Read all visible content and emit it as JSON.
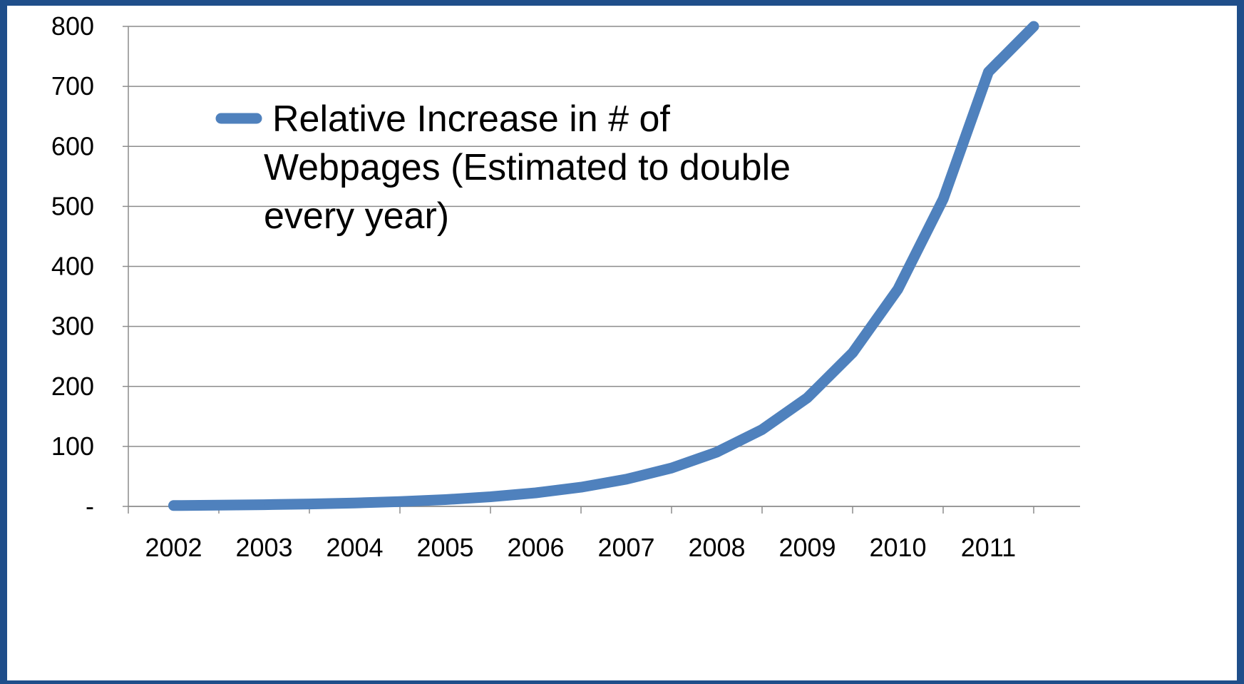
{
  "chart_data": {
    "type": "line",
    "title": "",
    "xlabel": "",
    "ylabel": "",
    "ylim": [
      0,
      800
    ],
    "yticks": [
      {
        "value": 0,
        "label": "-"
      },
      {
        "value": 100,
        "label": "100"
      },
      {
        "value": 200,
        "label": "200"
      },
      {
        "value": 300,
        "label": "300"
      },
      {
        "value": 400,
        "label": "400"
      },
      {
        "value": 500,
        "label": "500"
      },
      {
        "value": 600,
        "label": "600"
      },
      {
        "value": 700,
        "label": "700"
      },
      {
        "value": 800,
        "label": "800"
      }
    ],
    "categories": [
      "2002",
      "2003",
      "2004",
      "2005",
      "2006",
      "2007",
      "2008",
      "2009",
      "2010",
      "2011"
    ],
    "grid": true,
    "legend_position": "top-left",
    "series": [
      {
        "name": "Relative Increase in # of Webpages (Estimated to double every year)",
        "color": "#4f81bd",
        "x": [
          2002.0,
          2002.5,
          2003.0,
          2003.5,
          2004.0,
          2004.5,
          2005.0,
          2005.5,
          2006.0,
          2006.5,
          2007.0,
          2007.5,
          2008.0,
          2008.5,
          2009.0,
          2009.5,
          2010.0,
          2010.5,
          2011.0,
          2011.5
        ],
        "values": [
          1.4,
          2.0,
          2.8,
          4.0,
          5.7,
          8.0,
          11.3,
          16,
          22.6,
          32,
          45.3,
          64,
          90.5,
          128,
          181,
          256,
          362,
          512,
          724,
          800
        ]
      }
    ]
  }
}
